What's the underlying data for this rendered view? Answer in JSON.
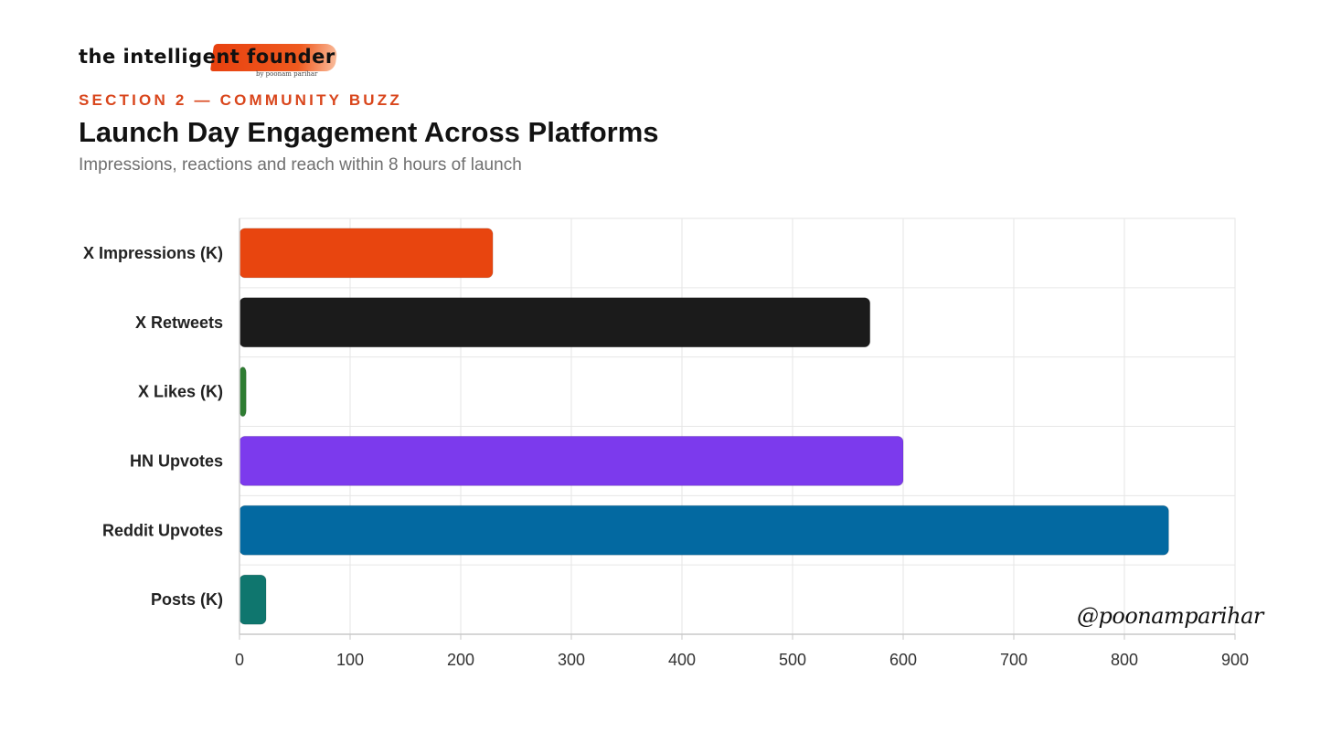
{
  "logo": {
    "wordmark": "the intelligent founder",
    "byline": "by poonam parihar"
  },
  "header": {
    "eyebrow": "SECTION 2 — COMMUNITY BUZZ",
    "title": "Launch Day Engagement Across Platforms",
    "subtitle": "Impressions, reactions and reach within 8 hours of launch"
  },
  "signature": "@poonamparihar",
  "chart_data": {
    "type": "bar",
    "orientation": "horizontal",
    "categories": [
      "X Impressions (K)",
      "X Retweets",
      "X Likes (K)",
      "HN Upvotes",
      "Reddit Upvotes",
      "Posts (K)"
    ],
    "values": [
      229,
      570,
      6,
      600,
      840,
      24
    ],
    "colors": [
      "#e8450f",
      "#1b1b1b",
      "#2e7d32",
      "#7c3aed",
      "#0369a1",
      "#0f766e"
    ],
    "xlim": [
      0,
      900
    ],
    "xticks": [
      "0",
      "100",
      "200",
      "300",
      "400",
      "500",
      "600",
      "700",
      "800",
      "900"
    ],
    "grid": true,
    "title": "Launch Day Engagement Across Platforms",
    "xlabel": "",
    "ylabel": ""
  }
}
